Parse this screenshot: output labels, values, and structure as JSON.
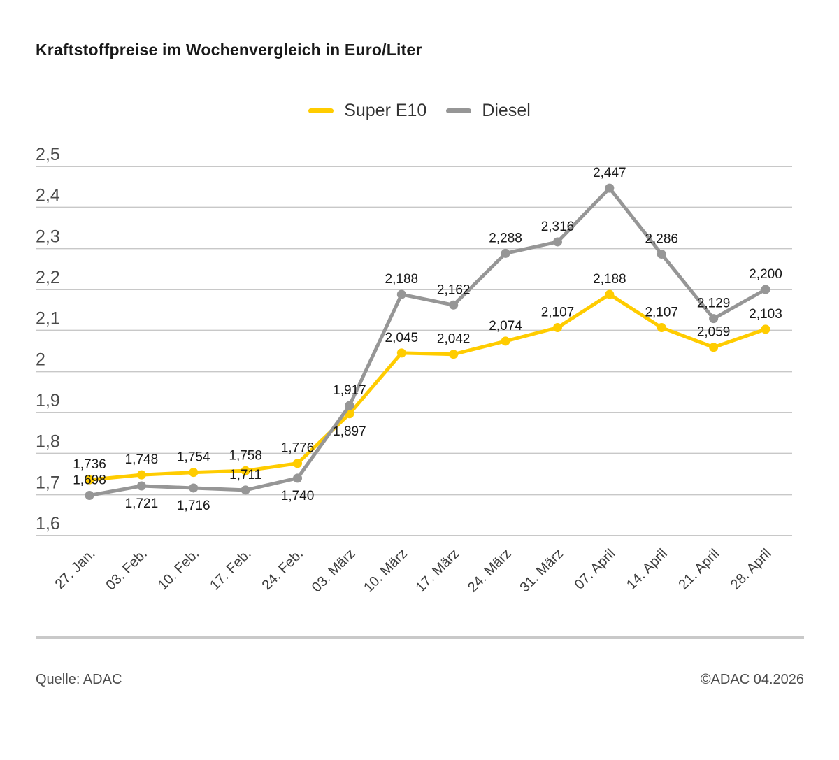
{
  "title": "Kraftstoffpreise im Wochenvergleich in Euro/Liter",
  "legend": {
    "items": [
      {
        "label": "Super E10",
        "color": "#FFCC00"
      },
      {
        "label": "Diesel",
        "color": "#969696"
      }
    ]
  },
  "footer": {
    "source": "Quelle: ADAC",
    "copyright": "©ADAC 04.2026"
  },
  "chart_data": {
    "type": "line",
    "title": "Kraftstoffpreise im Wochenvergleich in Euro/Liter",
    "unit": "Euro/Liter",
    "grid": true,
    "legend_position": "top-center",
    "categories": [
      "27. Jan.",
      "03. Feb.",
      "10. Feb.",
      "17. Feb.",
      "24. Feb.",
      "03. März",
      "10. März",
      "17. März",
      "24. März",
      "31. März",
      "07. April",
      "14. April",
      "21. April",
      "28. April"
    ],
    "ylim": [
      1.6,
      2.5
    ],
    "yticks": [
      {
        "value": 1.6,
        "label": "1,6"
      },
      {
        "value": 1.7,
        "label": "1,7"
      },
      {
        "value": 1.8,
        "label": "1,8"
      },
      {
        "value": 1.9,
        "label": "1,9"
      },
      {
        "value": 2.0,
        "label": "2"
      },
      {
        "value": 2.1,
        "label": "2,1"
      },
      {
        "value": 2.2,
        "label": "2,2"
      },
      {
        "value": 2.3,
        "label": "2,3"
      },
      {
        "value": 2.4,
        "label": "2,4"
      },
      {
        "value": 2.5,
        "label": "2,5"
      }
    ],
    "series": [
      {
        "name": "Super E10",
        "color": "#FFCC00",
        "values": [
          1.736,
          1.748,
          1.754,
          1.758,
          1.776,
          1.897,
          2.045,
          2.042,
          2.074,
          2.107,
          2.188,
          2.107,
          2.059,
          2.103
        ],
        "labels": [
          "1,736",
          "1,748",
          "1,754",
          "1,758",
          "1,776",
          "1,897",
          "2,045",
          "2,042",
          "2,074",
          "2,107",
          "2,188",
          "2,107",
          "2,059",
          "2,103"
        ],
        "label_positions": [
          "above",
          "above",
          "above",
          "above",
          "above",
          "below",
          "above",
          "above",
          "above",
          "above",
          "above",
          "above",
          "above",
          "above"
        ]
      },
      {
        "name": "Diesel",
        "color": "#969696",
        "values": [
          1.698,
          1.721,
          1.716,
          1.711,
          1.74,
          1.917,
          2.188,
          2.162,
          2.288,
          2.316,
          2.447,
          2.286,
          2.129,
          2.2
        ],
        "labels": [
          "1,698",
          "1,721",
          "1,716",
          "1,711",
          "1,740",
          "1,917",
          "2,188",
          "2,162",
          "2,288",
          "2,316",
          "2,447",
          "2,286",
          "2,129",
          "2,200"
        ],
        "label_positions": [
          "above",
          "below",
          "below",
          "above",
          "below",
          "above",
          "above",
          "above",
          "above",
          "above",
          "above",
          "above",
          "above",
          "above"
        ]
      }
    ],
    "style": {
      "grid_color": "#c8c8c8",
      "ytick_color": "#4a4a4a",
      "xtick_color": "#3d3d3d",
      "data_label_color": "#191919"
    }
  }
}
